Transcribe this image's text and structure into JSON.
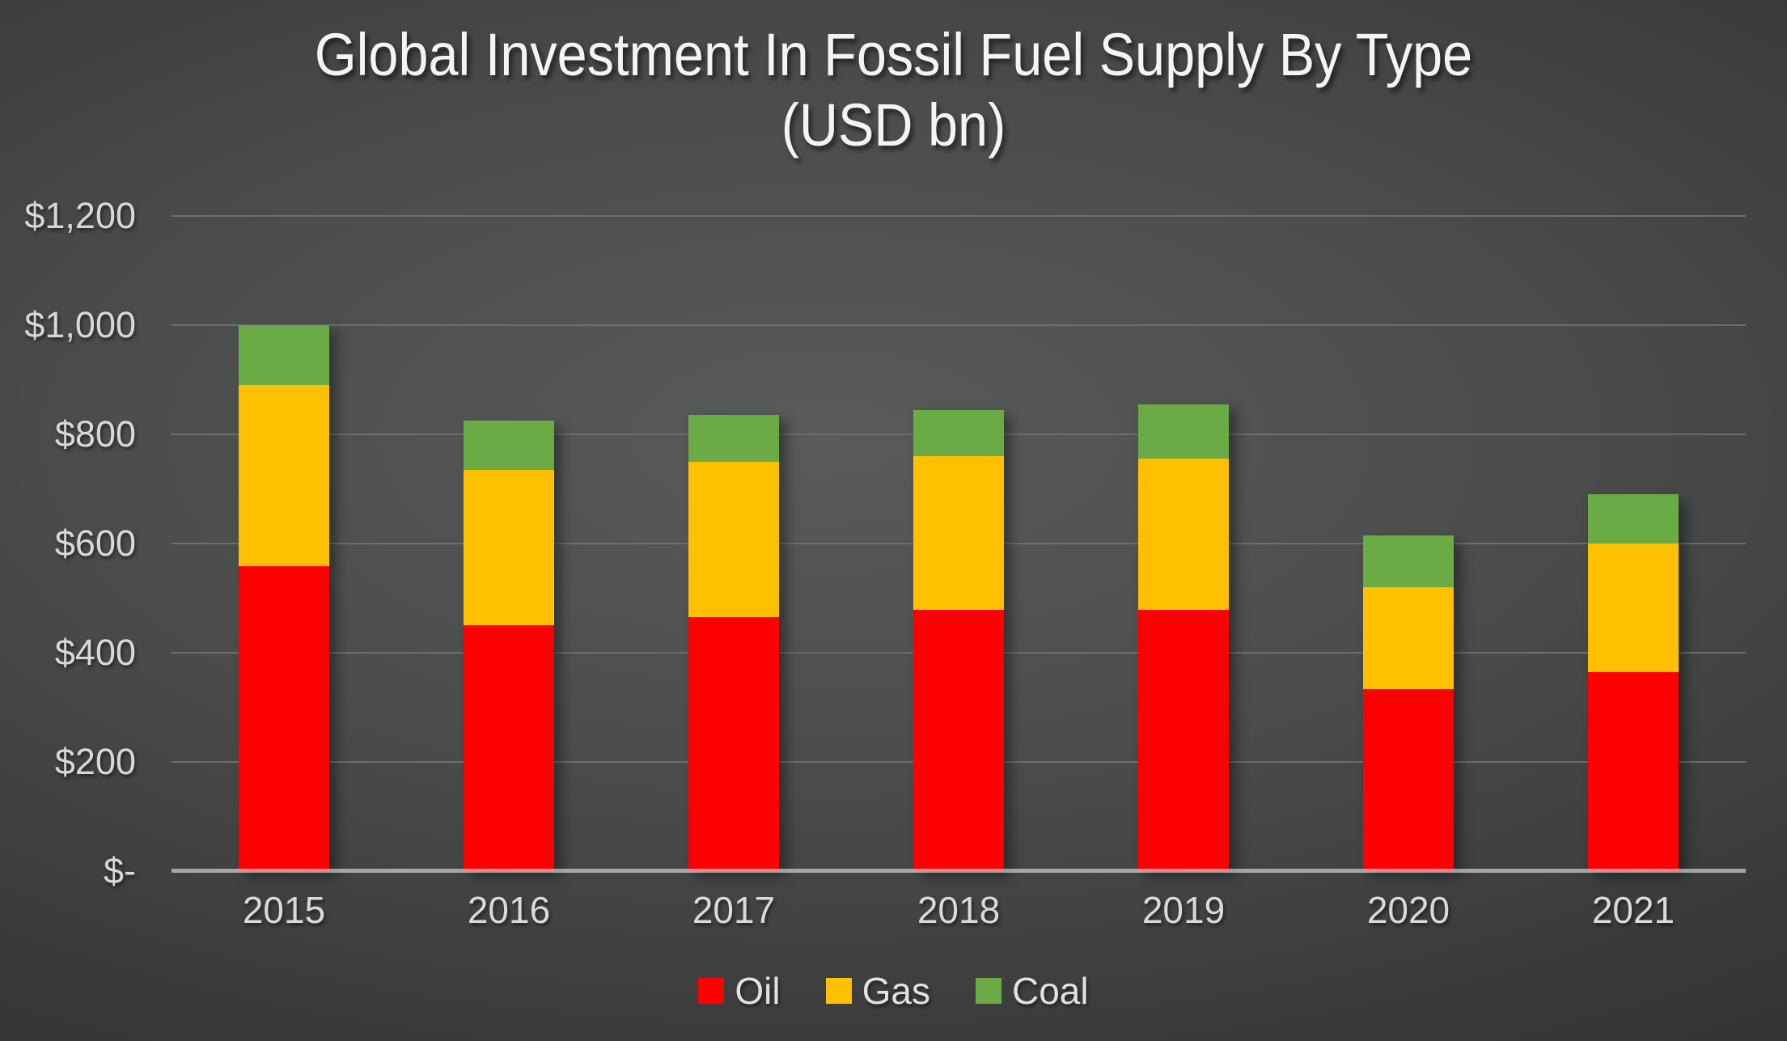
{
  "header": {
    "title_line1": "Global Investment In Fossil Fuel Supply By Type",
    "title_line2": "(USD bn)"
  },
  "chart_data": {
    "type": "bar",
    "stacked": true,
    "title": "Global Investment In Fossil Fuel Supply By Type (USD bn)",
    "xlabel": "",
    "ylabel": "",
    "categories": [
      "2015",
      "2016",
      "2017",
      "2018",
      "2019",
      "2020",
      "2021"
    ],
    "series": [
      {
        "name": "Oil",
        "color": "#ff0000",
        "values": [
          558,
          450,
          465,
          478,
          478,
          333,
          365
        ]
      },
      {
        "name": "Gas",
        "color": "#ffc000",
        "values": [
          332,
          285,
          285,
          282,
          277,
          187,
          235
        ]
      },
      {
        "name": "Coal",
        "color": "#6aab45",
        "values": [
          110,
          90,
          85,
          85,
          100,
          95,
          90
        ]
      }
    ],
    "totals": [
      1000,
      825,
      835,
      845,
      855,
      615,
      690
    ],
    "ylim": [
      0,
      1200
    ],
    "y_ticks": [
      {
        "value": 0,
        "label": "$-"
      },
      {
        "value": 200,
        "label": "$200"
      },
      {
        "value": 400,
        "label": "$400"
      },
      {
        "value": 600,
        "label": "$600"
      },
      {
        "value": 800,
        "label": "$800"
      },
      {
        "value": 1000,
        "label": "$1,000"
      },
      {
        "value": 1200,
        "label": "$1,200"
      }
    ],
    "grid": true,
    "legend_position": "bottom"
  },
  "colors": {
    "title_text": "#f4f4f4",
    "axis_text": "#d8d8d8",
    "gridline": "#6d6d6d",
    "axis_baseline": "#e4e4e4",
    "background_center": "#595b5b",
    "background_edge": "#272828"
  }
}
